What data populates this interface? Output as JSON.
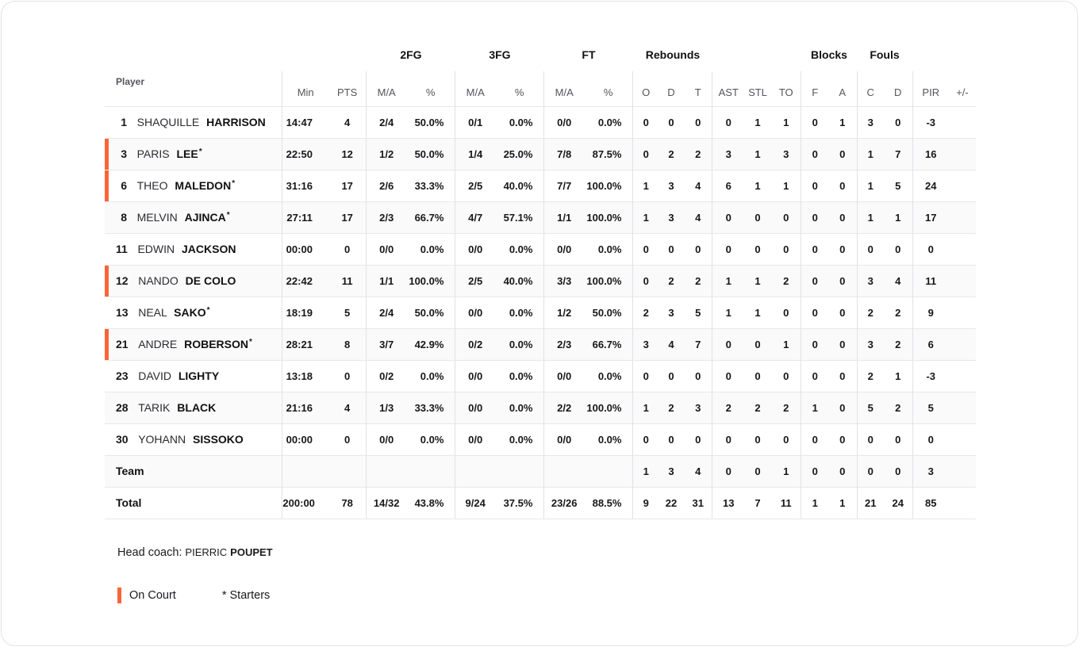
{
  "colors": {
    "accent": "#f96537"
  },
  "header": {
    "player_label": "Player",
    "starter_mark": "*",
    "groups": {
      "fg2": "2FG",
      "fg3": "3FG",
      "ft": "FT",
      "rebounds": "Rebounds",
      "blocks": "Blocks",
      "fouls": "Fouls"
    },
    "columns": [
      "Min",
      "PTS",
      "M/A",
      "%",
      "M/A",
      "%",
      "M/A",
      "%",
      "O",
      "D",
      "T",
      "AST",
      "STL",
      "TO",
      "F",
      "A",
      "C",
      "D",
      "PIR",
      "+/-"
    ]
  },
  "rows": [
    {
      "type": "player",
      "number": "1",
      "first": "SHAQUILLE",
      "last": "HARRISON",
      "starter": false,
      "on_court": false,
      "stats": [
        "14:47",
        "4",
        "2/4",
        "50.0%",
        "0/1",
        "0.0%",
        "0/0",
        "0.0%",
        "0",
        "0",
        "0",
        "0",
        "1",
        "1",
        "0",
        "1",
        "3",
        "0",
        "-3",
        ""
      ]
    },
    {
      "type": "player",
      "number": "3",
      "first": "PARIS",
      "last": "LEE",
      "starter": true,
      "on_court": true,
      "stats": [
        "22:50",
        "12",
        "1/2",
        "50.0%",
        "1/4",
        "25.0%",
        "7/8",
        "87.5%",
        "0",
        "2",
        "2",
        "3",
        "1",
        "3",
        "0",
        "0",
        "1",
        "7",
        "16",
        ""
      ]
    },
    {
      "type": "player",
      "number": "6",
      "first": "THEO",
      "last": "MALEDON",
      "starter": true,
      "on_court": true,
      "stats": [
        "31:16",
        "17",
        "2/6",
        "33.3%",
        "2/5",
        "40.0%",
        "7/7",
        "100.0%",
        "1",
        "3",
        "4",
        "6",
        "1",
        "1",
        "0",
        "0",
        "1",
        "5",
        "24",
        ""
      ]
    },
    {
      "type": "player",
      "number": "8",
      "first": "MELVIN",
      "last": "AJINCA",
      "starter": true,
      "on_court": false,
      "stats": [
        "27:11",
        "17",
        "2/3",
        "66.7%",
        "4/7",
        "57.1%",
        "1/1",
        "100.0%",
        "1",
        "3",
        "4",
        "0",
        "0",
        "0",
        "0",
        "0",
        "1",
        "1",
        "17",
        ""
      ]
    },
    {
      "type": "player",
      "number": "11",
      "first": "EDWIN",
      "last": "JACKSON",
      "starter": false,
      "on_court": false,
      "stats": [
        "00:00",
        "0",
        "0/0",
        "0.0%",
        "0/0",
        "0.0%",
        "0/0",
        "0.0%",
        "0",
        "0",
        "0",
        "0",
        "0",
        "0",
        "0",
        "0",
        "0",
        "0",
        "0",
        ""
      ]
    },
    {
      "type": "player",
      "number": "12",
      "first": "NANDO",
      "last": "DE COLO",
      "starter": false,
      "on_court": true,
      "stats": [
        "22:42",
        "11",
        "1/1",
        "100.0%",
        "2/5",
        "40.0%",
        "3/3",
        "100.0%",
        "0",
        "2",
        "2",
        "1",
        "1",
        "2",
        "0",
        "0",
        "3",
        "4",
        "11",
        ""
      ]
    },
    {
      "type": "player",
      "number": "13",
      "first": "NEAL",
      "last": "SAKO",
      "starter": true,
      "on_court": false,
      "stats": [
        "18:19",
        "5",
        "2/4",
        "50.0%",
        "0/0",
        "0.0%",
        "1/2",
        "50.0%",
        "2",
        "3",
        "5",
        "1",
        "1",
        "0",
        "0",
        "0",
        "2",
        "2",
        "9",
        ""
      ]
    },
    {
      "type": "player",
      "number": "21",
      "first": "ANDRE",
      "last": "ROBERSON",
      "starter": true,
      "on_court": true,
      "stats": [
        "28:21",
        "8",
        "3/7",
        "42.9%",
        "0/2",
        "0.0%",
        "2/3",
        "66.7%",
        "3",
        "4",
        "7",
        "0",
        "0",
        "1",
        "0",
        "0",
        "3",
        "2",
        "6",
        ""
      ]
    },
    {
      "type": "player",
      "number": "23",
      "first": "DAVID",
      "last": "LIGHTY",
      "starter": false,
      "on_court": false,
      "stats": [
        "13:18",
        "0",
        "0/2",
        "0.0%",
        "0/0",
        "0.0%",
        "0/0",
        "0.0%",
        "0",
        "0",
        "0",
        "0",
        "0",
        "0",
        "0",
        "0",
        "2",
        "1",
        "-3",
        ""
      ]
    },
    {
      "type": "player",
      "number": "28",
      "first": "TARIK",
      "last": "BLACK",
      "starter": false,
      "on_court": false,
      "stats": [
        "21:16",
        "4",
        "1/3",
        "33.3%",
        "0/0",
        "0.0%",
        "2/2",
        "100.0%",
        "1",
        "2",
        "3",
        "2",
        "2",
        "2",
        "1",
        "0",
        "5",
        "2",
        "5",
        ""
      ]
    },
    {
      "type": "player",
      "number": "30",
      "first": "YOHANN",
      "last": "SISSOKO",
      "starter": false,
      "on_court": false,
      "stats": [
        "00:00",
        "0",
        "0/0",
        "0.0%",
        "0/0",
        "0.0%",
        "0/0",
        "0.0%",
        "0",
        "0",
        "0",
        "0",
        "0",
        "0",
        "0",
        "0",
        "0",
        "0",
        "0",
        ""
      ]
    },
    {
      "type": "team",
      "label": "Team",
      "stats": [
        "",
        "",
        "",
        "",
        "",
        "",
        "",
        "",
        "1",
        "3",
        "4",
        "0",
        "0",
        "1",
        "0",
        "0",
        "0",
        "0",
        "3",
        ""
      ]
    },
    {
      "type": "total",
      "label": "Total",
      "stats": [
        "200:00",
        "78",
        "14/32",
        "43.8%",
        "9/24",
        "37.5%",
        "23/26",
        "88.5%",
        "9",
        "22",
        "31",
        "13",
        "7",
        "11",
        "1",
        "1",
        "21",
        "24",
        "85",
        ""
      ]
    }
  ],
  "footer": {
    "head_coach_label": "Head coach:",
    "head_coach_first": "PIERRIC",
    "head_coach_last": "POUPET",
    "legend_on_court": "On Court",
    "legend_starters": "* Starters"
  }
}
